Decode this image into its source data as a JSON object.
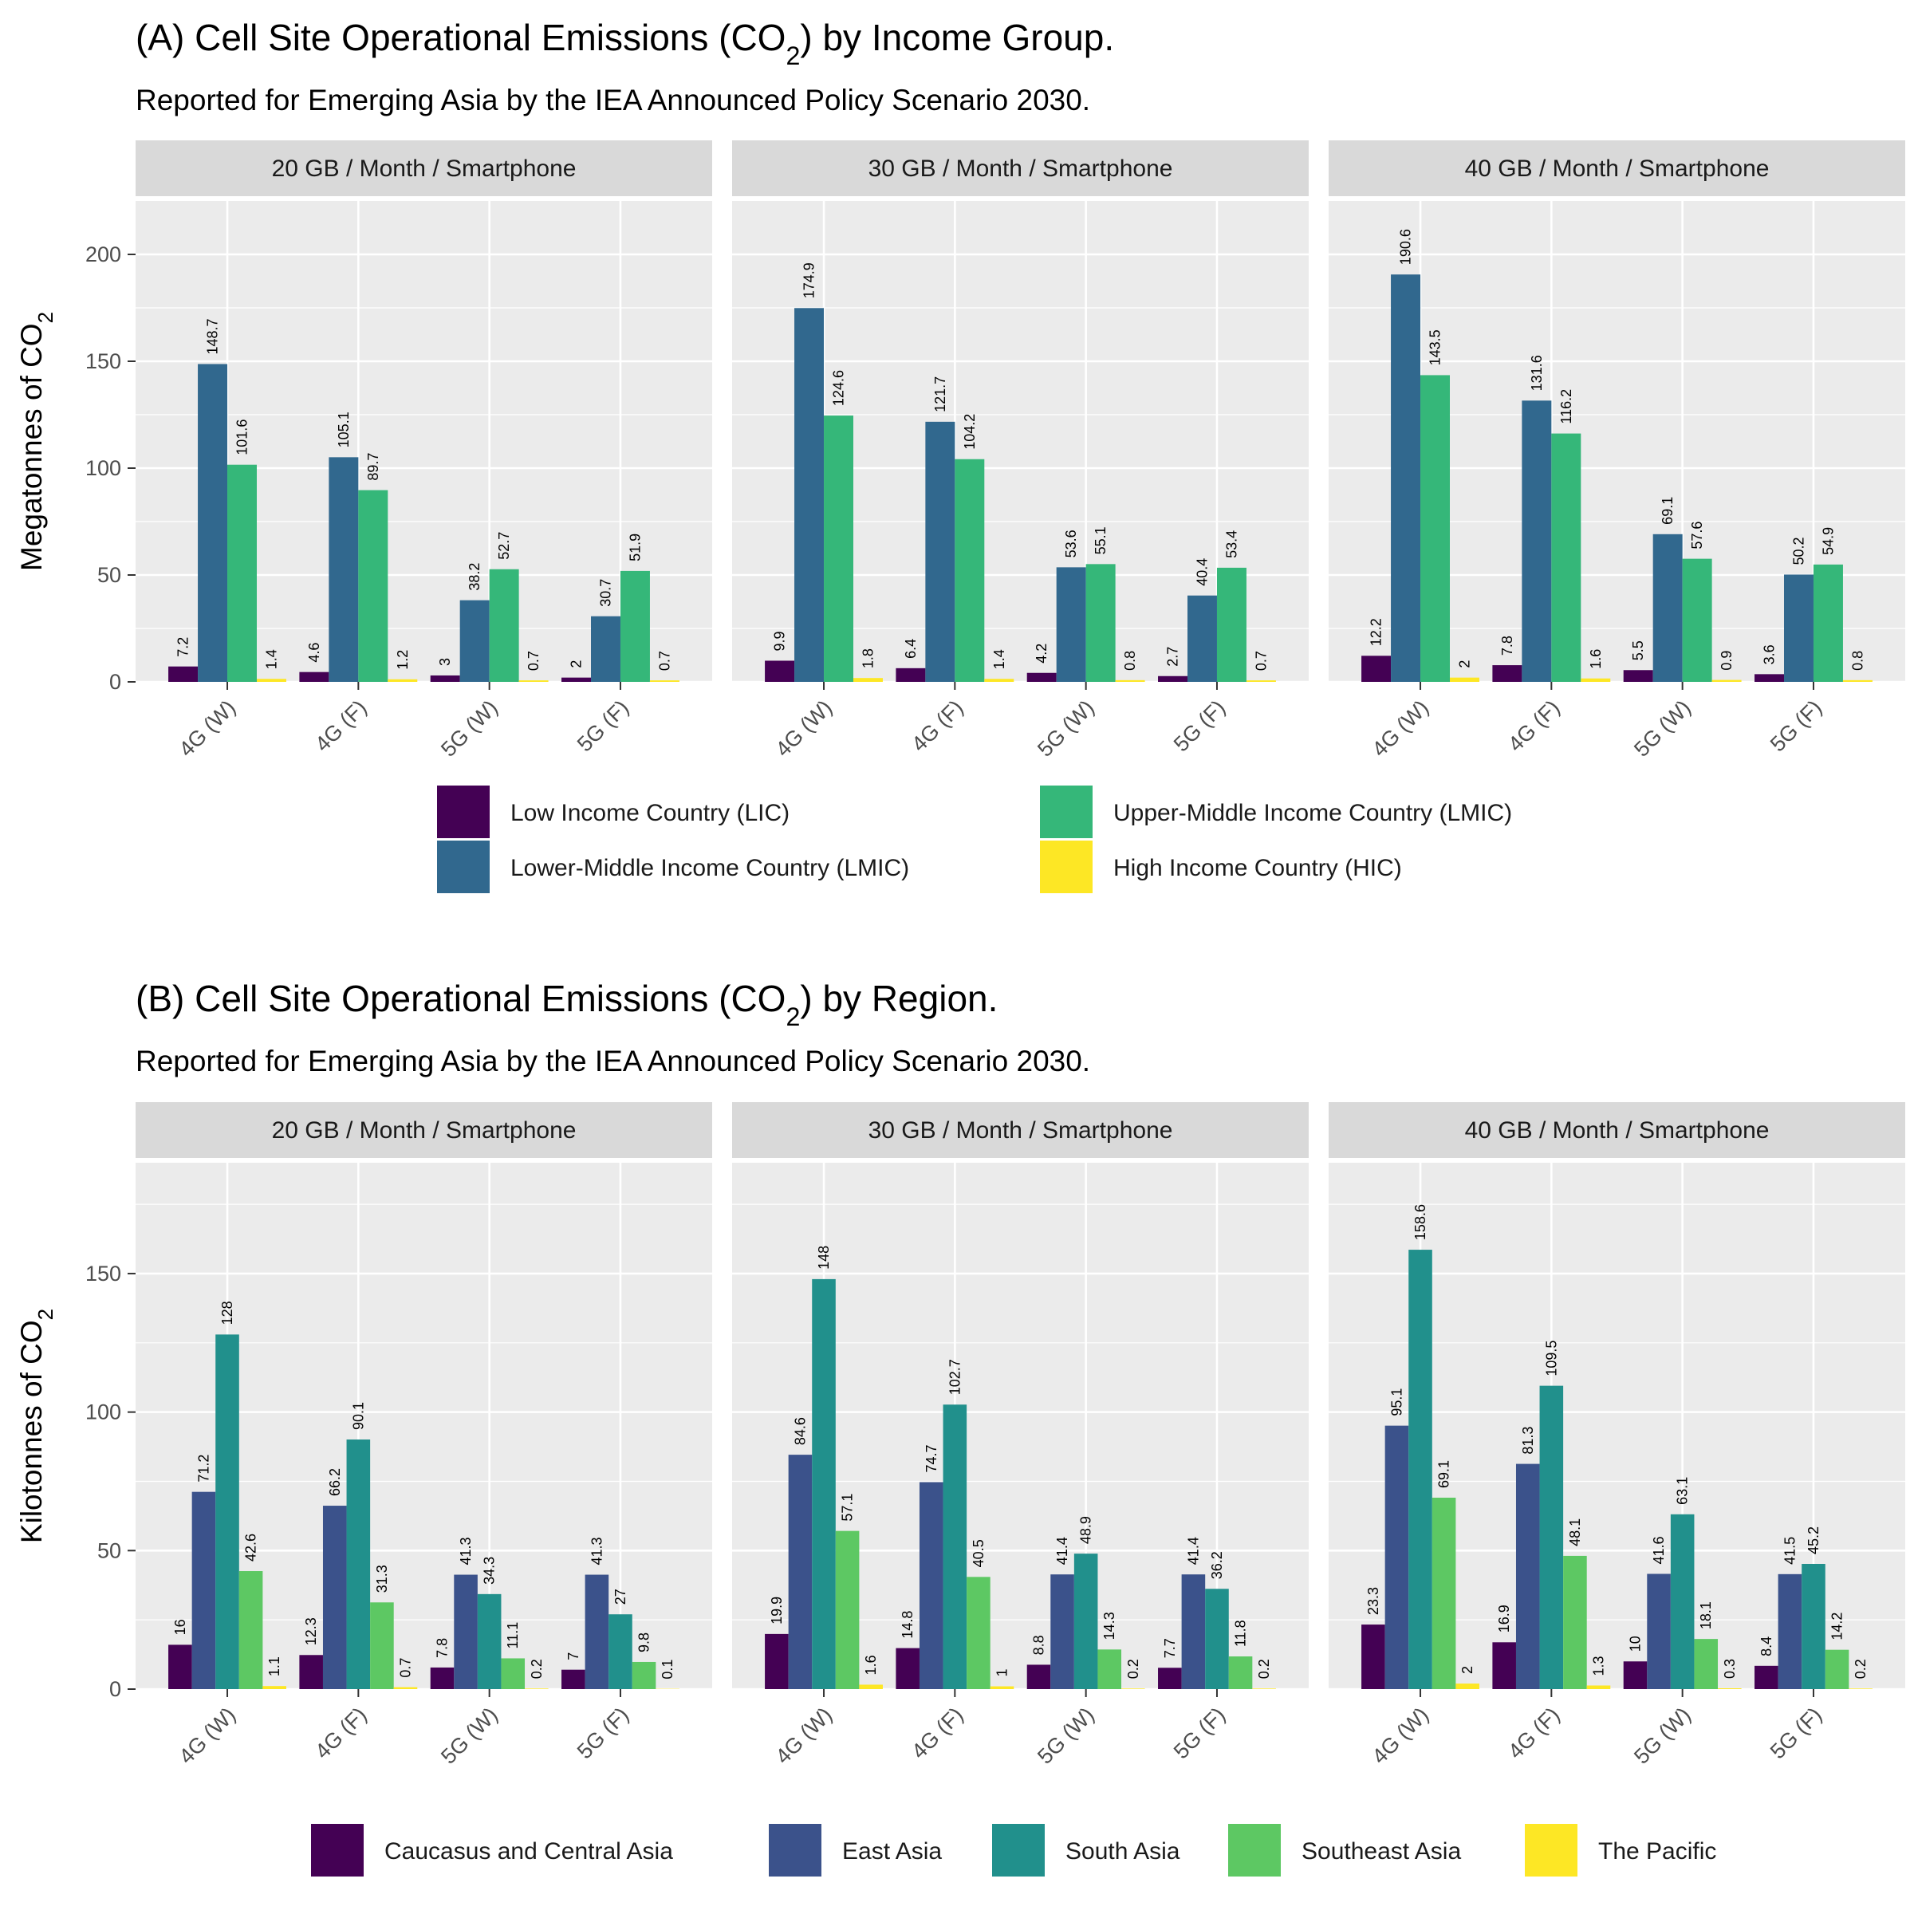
{
  "chart_data": [
    {
      "type": "bar",
      "title": "(A) Cell Site Operational Emissions (CO",
      "title_sub": "2",
      "title_end": ") by Income Group.",
      "subtitle": "Reported for Emerging Asia by the IEA Announced Policy Scenario 2030.",
      "ylabel": "Megatonnes of CO",
      "ylabel_sub": "2",
      "ylim": [
        0,
        225
      ],
      "yticks": [
        0,
        50,
        100,
        150,
        200
      ],
      "grid": true,
      "legend_position": "bottom",
      "categories": [
        "4G (W)",
        "4G (F)",
        "5G (W)",
        "5G (F)"
      ],
      "series_names": [
        "Low Income Country (LIC)",
        "Lower-Middle Income Country (LMIC)",
        "Upper-Middle Income Country (LMIC)",
        "High Income Country (HIC)"
      ],
      "colors": [
        "#440154",
        "#31688E",
        "#35B779",
        "#FDE725"
      ],
      "panels": [
        {
          "label": "20 GB / Month / Smartphone",
          "values": [
            [
              7.2,
              148.7,
              101.6,
              1.4
            ],
            [
              4.6,
              105.1,
              89.7,
              1.2
            ],
            [
              3,
              38.2,
              52.7,
              0.7
            ],
            [
              2,
              30.7,
              51.9,
              0.7
            ]
          ]
        },
        {
          "label": "30 GB / Month / Smartphone",
          "values": [
            [
              9.9,
              174.9,
              124.6,
              1.8
            ],
            [
              6.4,
              121.7,
              104.2,
              1.4
            ],
            [
              4.2,
              53.6,
              55.1,
              0.8
            ],
            [
              2.7,
              40.4,
              53.4,
              0.7
            ]
          ]
        },
        {
          "label": "40 GB / Month / Smartphone",
          "values": [
            [
              12.2,
              190.6,
              143.5,
              2
            ],
            [
              7.8,
              131.6,
              116.2,
              1.6
            ],
            [
              5.5,
              69.1,
              57.6,
              0.9
            ],
            [
              3.6,
              50.2,
              54.9,
              0.8
            ]
          ]
        }
      ]
    },
    {
      "type": "bar",
      "title": "(B) Cell Site Operational Emissions (CO",
      "title_sub": "2",
      "title_end": ") by Region.",
      "subtitle": "Reported for Emerging Asia by the IEA Announced Policy Scenario 2030.",
      "ylabel": "Kilotonnes of CO",
      "ylabel_sub": "2",
      "ylim": [
        0,
        190
      ],
      "yticks": [
        0,
        50,
        100,
        150
      ],
      "grid": true,
      "legend_position": "bottom",
      "categories": [
        "4G (W)",
        "4G (F)",
        "5G (W)",
        "5G (F)"
      ],
      "series_names": [
        "Caucasus and Central Asia",
        "East Asia",
        "South Asia",
        "Southeast Asia",
        "The Pacific"
      ],
      "colors": [
        "#440154",
        "#3B528B",
        "#21908C",
        "#5DC863",
        "#FDE725"
      ],
      "panels": [
        {
          "label": "20 GB / Month / Smartphone",
          "values": [
            [
              16,
              71.2,
              128,
              42.6,
              1.1
            ],
            [
              12.3,
              66.2,
              90.1,
              31.3,
              0.7
            ],
            [
              7.8,
              41.3,
              34.3,
              11.1,
              0.2
            ],
            [
              7,
              41.3,
              27,
              9.8,
              0.1
            ]
          ]
        },
        {
          "label": "30 GB / Month / Smartphone",
          "values": [
            [
              19.9,
              84.6,
              148,
              57.1,
              1.6
            ],
            [
              14.8,
              74.7,
              102.7,
              40.5,
              1
            ],
            [
              8.8,
              41.4,
              48.9,
              14.3,
              0.2
            ],
            [
              7.7,
              41.4,
              36.2,
              11.8,
              0.2
            ]
          ]
        },
        {
          "label": "40 GB / Month / Smartphone",
          "values": [
            [
              23.3,
              95.1,
              158.6,
              69.1,
              2
            ],
            [
              16.9,
              81.3,
              109.5,
              48.1,
              1.3
            ],
            [
              10,
              41.6,
              63.1,
              18.1,
              0.3
            ],
            [
              8.4,
              41.5,
              45.2,
              14.2,
              0.2
            ]
          ]
        }
      ]
    }
  ]
}
